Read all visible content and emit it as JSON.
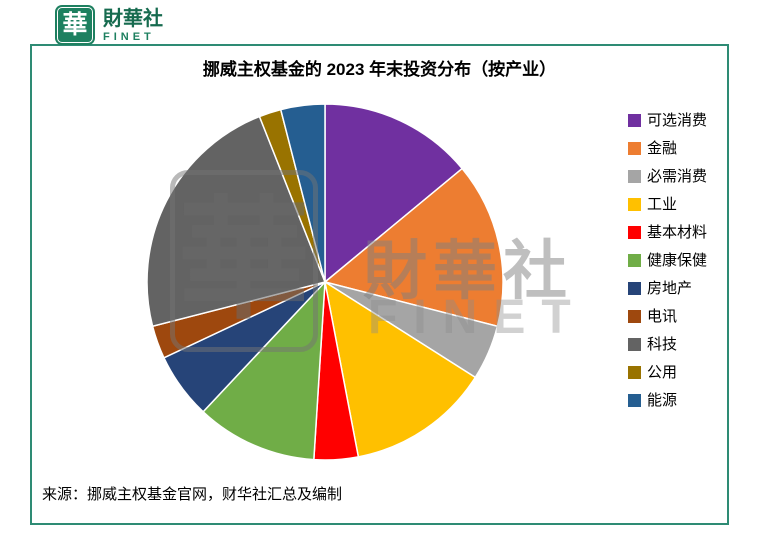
{
  "logo": {
    "mark": "華",
    "name": "財華社",
    "sub": "FINET"
  },
  "watermark": {
    "char": "華",
    "name": "財華社",
    "sub": "FINET"
  },
  "chart": {
    "source": "来源：挪威主权基金官网，财华社汇总及编制"
  },
  "colors": {
    "brand_green": "#1E8060",
    "brand_dark_green": "#166B4F",
    "frame_border": "#2E8B74"
  },
  "chart_data": {
    "type": "pie",
    "title": "挪威主权基金的 2023 年末投资分布（按产业）",
    "legend_position": "right",
    "start_angle_deg": -90,
    "direction": "clockwise",
    "units": "percent",
    "slices": [
      {
        "label": "可选消费",
        "value": 14,
        "color": "#7030A0"
      },
      {
        "label": "金融",
        "value": 15,
        "color": "#ED7D31"
      },
      {
        "label": "必需消费",
        "value": 5,
        "color": "#A5A5A5"
      },
      {
        "label": "工业",
        "value": 13,
        "color": "#FFC000"
      },
      {
        "label": "基本材料",
        "value": 4,
        "color": "#FF0000"
      },
      {
        "label": "健康保健",
        "value": 11,
        "color": "#70AD47"
      },
      {
        "label": "房地产",
        "value": 6,
        "color": "#264478"
      },
      {
        "label": "电讯",
        "value": 3,
        "color": "#9E480E"
      },
      {
        "label": "科技",
        "value": 23,
        "color": "#636363"
      },
      {
        "label": "公用",
        "value": 2,
        "color": "#997300"
      },
      {
        "label": "能源",
        "value": 4,
        "color": "#255E91"
      }
    ]
  }
}
